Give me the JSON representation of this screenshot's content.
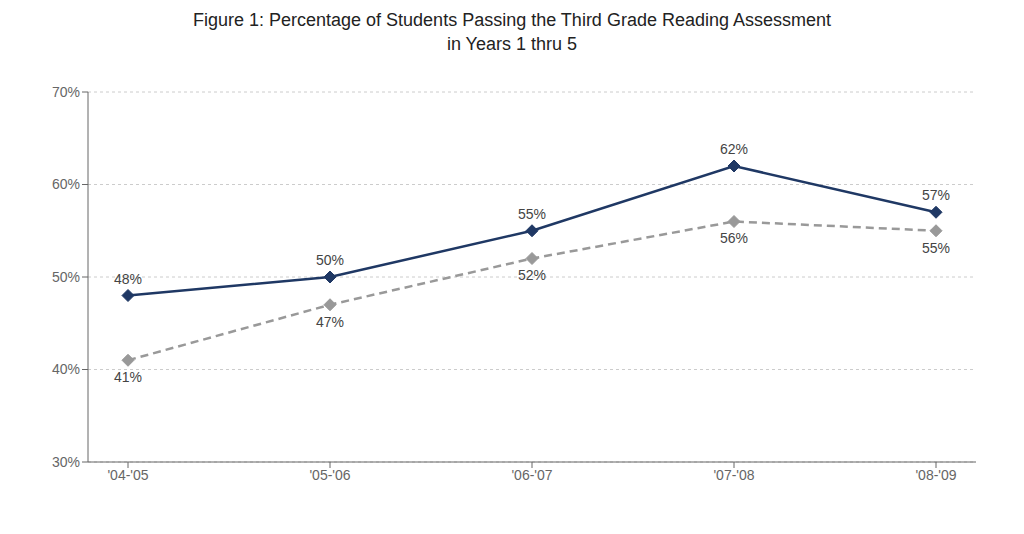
{
  "chart_data": {
    "type": "line",
    "title": "Figure 1: Percentage of Students Passing the Third Grade Reading Assessment\nin Years 1 thru 5",
    "categories": [
      "'04-'05",
      "'05-'06",
      "'06-'07",
      "'07-'08",
      "'08-'09"
    ],
    "series": [
      {
        "color": "#1F3864",
        "values": [
          48,
          50,
          55,
          62,
          57
        ],
        "value_labels": [
          "48%",
          "50%",
          "55%",
          "62%",
          "57%"
        ],
        "line_style": "solid",
        "marker": "diamond"
      },
      {
        "color": "#999999",
        "values": [
          41,
          47,
          52,
          56,
          55
        ],
        "value_labels": [
          "41%",
          "47%",
          "52%",
          "56%",
          "55%"
        ],
        "line_style": "dashed",
        "marker": "diamond"
      }
    ],
    "ylim": [
      30,
      70
    ],
    "yticks": [
      {
        "value": 30,
        "label": "30%"
      },
      {
        "value": 40,
        "label": "40%"
      },
      {
        "value": 50,
        "label": "50%"
      },
      {
        "value": 60,
        "label": "60%"
      },
      {
        "value": 70,
        "label": "70%"
      }
    ],
    "grid": true,
    "data_labels": true
  }
}
